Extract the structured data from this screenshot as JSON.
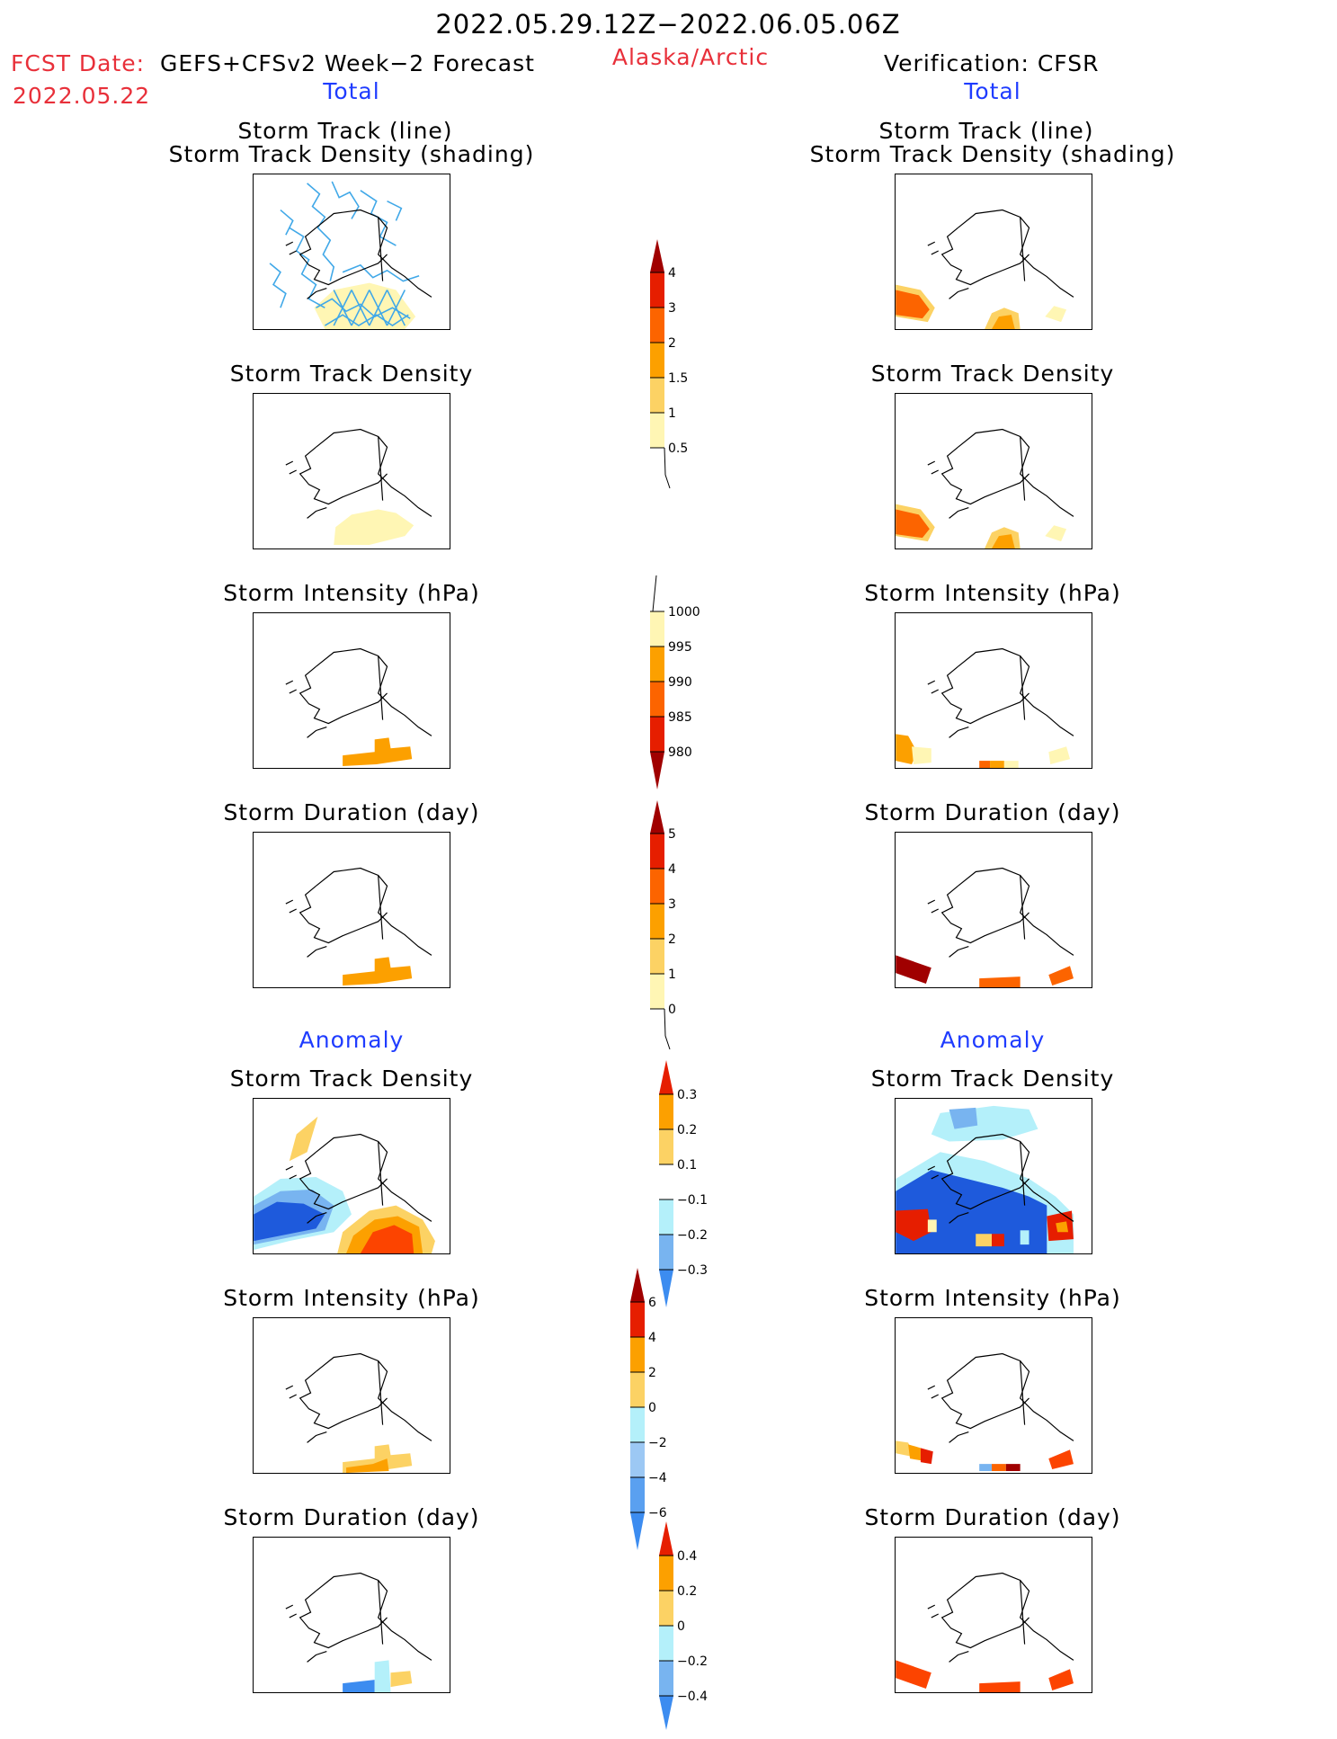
{
  "header": {
    "period": "2022.05.29.12Z−2022.06.05.06Z",
    "fcst_date_label": "FCST Date:",
    "fcst_date": "2022.05.22",
    "forecast_name": "GEFS+CFSv2 Week−2 Forecast",
    "region": "Alaska/Arctic",
    "verification": "Verification: CFSR",
    "total_left": "Total",
    "total_right": "Total",
    "anomaly_left": "Anomaly",
    "anomaly_right": "Anomaly"
  },
  "panels": {
    "track_title_1": "Storm Track (line)",
    "track_title_2": "Storm Track Density (shading)",
    "density": "Storm Track Density",
    "intensity": "Storm Intensity (hPa)",
    "duration": "Storm Duration (day)"
  },
  "colorbars": {
    "density_total": [
      "0.5",
      "1",
      "1.5",
      "2",
      "3",
      "4"
    ],
    "intensity_total": [
      "1000",
      "995",
      "990",
      "985",
      "980"
    ],
    "duration_total": [
      "0",
      "1",
      "2",
      "3",
      "4",
      "5"
    ],
    "density_anom": [
      "0.3",
      "0.2",
      "0.1",
      "−0.1",
      "−0.2",
      "−0.3"
    ],
    "intensity_anom": [
      "6",
      "4",
      "2",
      "0",
      "−2",
      "−4",
      "−6"
    ],
    "duration_anom": [
      "0.4",
      "0.2",
      "0",
      "−0.2",
      "−0.4"
    ]
  },
  "colors": {
    "pale_yellow": "#fff6b4",
    "yellow": "#fcd264",
    "orange": "#fca000",
    "dark_orange": "#fc6400",
    "red": "#e61e00",
    "dark_red": "#a00000",
    "light_blue": "#b4f0fa",
    "mid_blue": "#78b4f0",
    "blue": "#3c8cf0",
    "dark_blue": "#1e5adc",
    "track_line": "#40a8e8"
  }
}
